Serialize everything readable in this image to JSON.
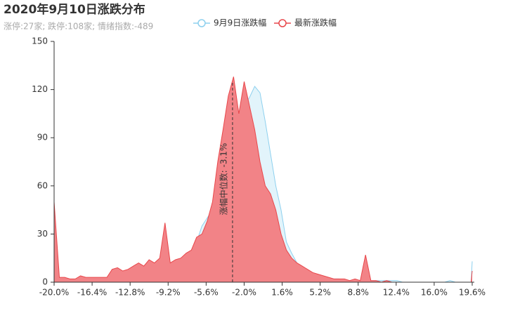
{
  "chart_data": {
    "type": "area",
    "title": "2020年9月10日涨跌分布",
    "subtitle": "涨停:27家; 跌停:108家; 情绪指数:-489",
    "x": [
      -20,
      -19.5,
      -19,
      -18.5,
      -18,
      -17.5,
      -17,
      -16.5,
      -16,
      -15.5,
      -15,
      -14.5,
      -14,
      -13.5,
      -13,
      -12.5,
      -12,
      -11.5,
      -11,
      -10.5,
      -10,
      -9.5,
      -9,
      -8.5,
      -8,
      -7.5,
      -7,
      -6.5,
      -6,
      -5.5,
      -5,
      -4.5,
      -4,
      -3.5,
      -3,
      -2.5,
      -2,
      -1.5,
      -1,
      -0.5,
      0,
      0.5,
      1,
      1.5,
      2,
      2.5,
      3,
      3.5,
      4,
      4.5,
      5,
      5.5,
      6,
      6.5,
      7,
      7.5,
      8,
      8.5,
      9,
      9.5,
      10,
      10.5,
      11,
      11.5,
      12,
      12.5,
      13,
      13.5,
      14,
      14.5,
      15,
      15.5,
      16,
      16.5,
      17,
      17.5,
      18,
      18.5,
      19,
      19.5,
      19.6
    ],
    "series": [
      {
        "name": "9月9日涨跌幅",
        "color": "#8dd0ee",
        "fill": "#dff3fb",
        "values": [
          3,
          1,
          1,
          1,
          1,
          2,
          2,
          2,
          2,
          2,
          2,
          3,
          3,
          3,
          4,
          4,
          4,
          5,
          5,
          5,
          5,
          8,
          10,
          12,
          14,
          16,
          20,
          25,
          35,
          40,
          45,
          60,
          75,
          90,
          105,
          100,
          110,
          115,
          122,
          118,
          100,
          80,
          60,
          45,
          25,
          18,
          12,
          8,
          6,
          5,
          4,
          3,
          2,
          2,
          2,
          1,
          1,
          1,
          1,
          2,
          1,
          1,
          1,
          1,
          1,
          1,
          0,
          0,
          0,
          0,
          0,
          0,
          0,
          0,
          0,
          1,
          0,
          0,
          0,
          0,
          13
        ]
      },
      {
        "name": "最新涨跌幅",
        "color": "#e8474b",
        "fill": "#f28387",
        "values": [
          50,
          3,
          3,
          2,
          2,
          4,
          3,
          3,
          3,
          3,
          3,
          8,
          9,
          7,
          8,
          10,
          12,
          10,
          14,
          12,
          15,
          37,
          12,
          14,
          15,
          18,
          20,
          28,
          30,
          38,
          50,
          75,
          95,
          116,
          128,
          105,
          125,
          110,
          95,
          75,
          60,
          55,
          45,
          30,
          20,
          15,
          12,
          10,
          8,
          6,
          5,
          4,
          3,
          2,
          2,
          2,
          1,
          2,
          1,
          17,
          1,
          1,
          0,
          1,
          0,
          0,
          0,
          0,
          0,
          0,
          0,
          0,
          0,
          0,
          0,
          0,
          0,
          0,
          0,
          0,
          7
        ]
      }
    ],
    "xlim": [
      -20,
      19.8
    ],
    "xticks": [
      {
        "value": -20,
        "label": "-20.0%"
      },
      {
        "value": -16.4,
        "label": "-16.4%"
      },
      {
        "value": -12.8,
        "label": "-12.8%"
      },
      {
        "value": -9.2,
        "label": "-9.2%"
      },
      {
        "value": -5.6,
        "label": "-5.6%"
      },
      {
        "value": -2,
        "label": "-2.0%"
      },
      {
        "value": 1.6,
        "label": "1.6%"
      },
      {
        "value": 5.2,
        "label": "5.2%"
      },
      {
        "value": 8.8,
        "label": "8.8%"
      },
      {
        "value": 12.4,
        "label": "12.4%"
      },
      {
        "value": 16,
        "label": "16.0%"
      },
      {
        "value": 19.6,
        "label": "19.6%"
      }
    ],
    "ylim": [
      0,
      150
    ],
    "yticks": [
      0,
      30,
      60,
      90,
      120,
      150
    ],
    "markline": {
      "value": -3.1,
      "label": "涨幅中位数: -3.1%"
    }
  }
}
